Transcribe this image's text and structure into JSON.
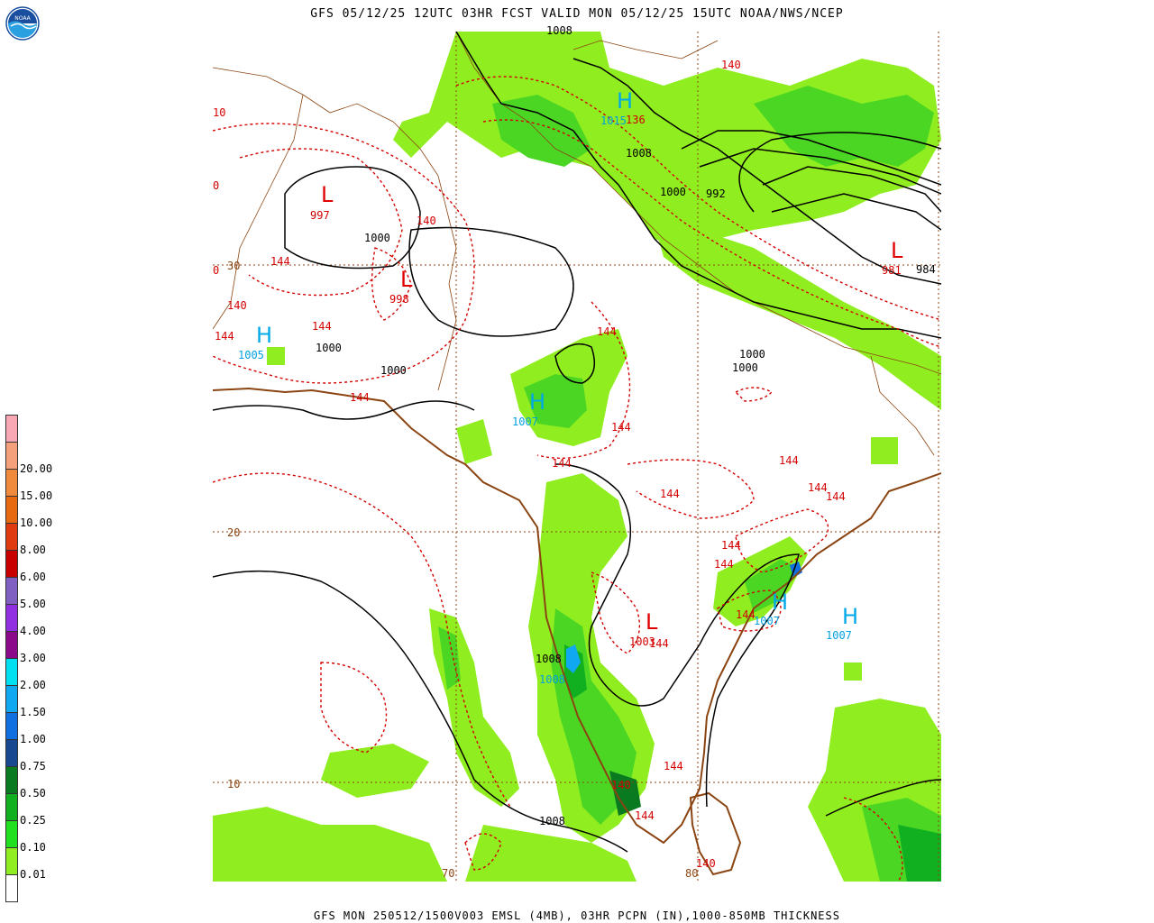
{
  "header": {
    "title": "GFS 05/12/25 12UTC 03HR FCST VALID MON 05/12/25 15UTC NOAA/NWS/NCEP"
  },
  "footer": {
    "text": "GFS MON 250512/1500V003 EMSL (4MB), 03HR PCPN (IN),1000-850MB THICKNESS"
  },
  "logo": {
    "icon": "noaa-logo-icon",
    "text": "NOAA"
  },
  "legend": {
    "items": [
      {
        "label": "",
        "color": "#f7a8b4"
      },
      {
        "label": "20.00",
        "color": "#f4a07a"
      },
      {
        "label": "15.00",
        "color": "#f08a3c"
      },
      {
        "label": "10.00",
        "color": "#e86a10"
      },
      {
        "label": "8.00",
        "color": "#e03a10"
      },
      {
        "label": "6.00",
        "color": "#c80000"
      },
      {
        "label": "5.00",
        "color": "#8060c0"
      },
      {
        "label": "4.00",
        "color": "#9030e0"
      },
      {
        "label": "3.00",
        "color": "#8a0a8a"
      },
      {
        "label": "2.00",
        "color": "#00e0f0"
      },
      {
        "label": "1.50",
        "color": "#10a8f0"
      },
      {
        "label": "1.00",
        "color": "#1070e0"
      },
      {
        "label": "0.75",
        "color": "#184890"
      },
      {
        "label": "0.50",
        "color": "#0a7a20"
      },
      {
        "label": "0.25",
        "color": "#10b020"
      },
      {
        "label": "0.10",
        "color": "#20e020"
      },
      {
        "label": "0.01",
        "color": "#90ee20"
      },
      {
        "label": "",
        "color": "#ffffff"
      }
    ]
  },
  "grid_labels": {
    "lat_30": "30",
    "lat_20": "20",
    "lat_10": "10",
    "lon_70": "70",
    "lon_80": "80"
  },
  "pressure_centers": [
    {
      "type": "L",
      "value": "997"
    },
    {
      "type": "L",
      "value": "998"
    },
    {
      "type": "H",
      "value": "1005"
    },
    {
      "type": "H",
      "value": "1015"
    },
    {
      "type": "H",
      "value": "1007"
    },
    {
      "type": "L",
      "value": "981"
    },
    {
      "type": "L",
      "value": "1003"
    },
    {
      "type": "H",
      "value": "1008"
    },
    {
      "type": "H",
      "value": "1007"
    },
    {
      "type": "H",
      "value": "1007"
    }
  ],
  "isobar_labels": {
    "l1000a": "1000",
    "l1000b": "1000",
    "l1000c": "1000",
    "l1008a": "1008",
    "l1000d": "1000",
    "l992": "992",
    "l984": "984",
    "l1000e": "1000",
    "l1000f": "1000",
    "l1008b": "1008",
    "l1008c": "1008",
    "l1000top": "1008"
  },
  "thickness_labels": {
    "t140a": "140",
    "t140b": "140",
    "t144a": "144",
    "t140c": "140",
    "t144b": "144",
    "t144c": "144",
    "t136": "136",
    "t144d": "144",
    "t144e": "144",
    "t144f": "144",
    "t144g": "144",
    "t144h": "144",
    "t144i": "144",
    "t144j": "144",
    "t144k": "144",
    "t144l": "144",
    "t144m": "144",
    "t144n": "144",
    "t144o": "144",
    "t144p": "144",
    "t140d": "140",
    "t140e": "140",
    "t144q": "144",
    "t144r": "144",
    "t10": "10",
    "t0": "0",
    "t0b": "0"
  }
}
